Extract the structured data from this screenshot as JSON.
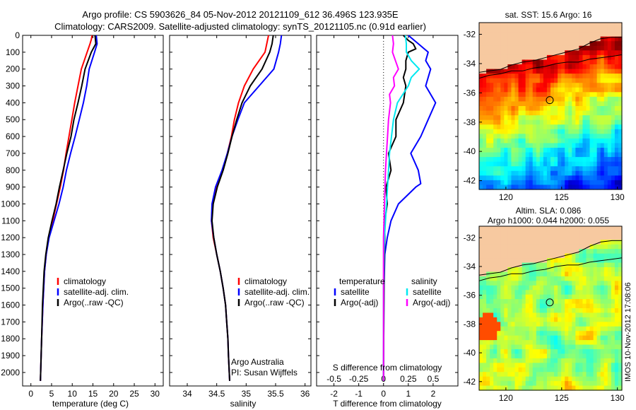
{
  "header": {
    "line1": "Argo profile: CS 5903626_84 05-Nov-2012 20121109_612 36.496S 123.935E",
    "line2": "Climatology: CARS2009. Satellite-adjusted climatology: synTS_20121105.nc (0.91d earlier)"
  },
  "colors": {
    "climatology": "#ff0000",
    "satellite": "#0000ff",
    "argo": "#000000",
    "s_satellite": "#00e8f0",
    "s_argo": "#ff00ff",
    "land": "#f7c9a0"
  },
  "chart_data": [
    {
      "type": "line",
      "name": "temperature",
      "xlabel": "temperature (deg C)",
      "ylabel": "",
      "xlim": [
        -2,
        32
      ],
      "ylim": [
        0,
        2080
      ],
      "y_inverted": true,
      "xticks": [
        "0",
        "5",
        "10",
        "15",
        "20",
        "25",
        "30"
      ],
      "yticks": [
        "0",
        "100",
        "200",
        "300",
        "400",
        "500",
        "600",
        "700",
        "800",
        "900",
        "1000",
        "1100",
        "1200",
        "1300",
        "1400",
        "1500",
        "1600",
        "1700",
        "1800",
        "1900",
        "2000"
      ],
      "legend": [
        "climatology",
        "satellite-adj. clim.",
        "Argo(..raw -QC)"
      ],
      "legend_placement": "lower-center",
      "series": [
        {
          "name": "climatology",
          "color": "red",
          "depth": [
            0,
            25,
            50,
            100,
            200,
            300,
            400,
            500,
            600,
            700,
            800,
            900,
            1000,
            1100,
            1200,
            1300,
            1400,
            1600,
            1800,
            2050
          ],
          "values": [
            14.8,
            14.6,
            14.3,
            13.6,
            12.2,
            11.4,
            10.6,
            9.9,
            9.2,
            8.5,
            7.9,
            7.1,
            6.2,
            5.3,
            4.3,
            3.7,
            3.3,
            2.9,
            2.6,
            2.3
          ]
        },
        {
          "name": "satellite-adj. clim.",
          "color": "blue",
          "depth": [
            0,
            25,
            50,
            100,
            200,
            300,
            400,
            500,
            600,
            700,
            800,
            900,
            1000,
            1100,
            1200,
            1300,
            1400,
            1600,
            1800,
            2050
          ],
          "values": [
            15.8,
            15.9,
            16.0,
            15.4,
            14.1,
            13.5,
            12.7,
            11.7,
            10.7,
            9.6,
            8.6,
            7.8,
            6.8,
            5.6,
            4.4,
            3.7,
            3.3,
            2.9,
            2.6,
            2.3
          ]
        },
        {
          "name": "Argo(..raw -QC)",
          "color": "black",
          "depth": [
            0,
            25,
            50,
            100,
            200,
            300,
            400,
            500,
            600,
            700,
            800,
            900,
            1000,
            1100,
            1200,
            1300,
            1400,
            1600,
            1800,
            2050
          ],
          "values": [
            15.5,
            15.6,
            15.7,
            14.6,
            13.1,
            12.3,
            11.4,
            10.4,
            9.7,
            8.7,
            7.8,
            6.9,
            6.1,
            5.1,
            4.2,
            3.6,
            3.2,
            2.8,
            2.6,
            2.3
          ]
        }
      ]
    },
    {
      "type": "line",
      "name": "salinity",
      "xlabel": "salinity",
      "ylabel": "",
      "xlim": [
        33.7,
        36.1
      ],
      "ylim": [
        0,
        2080
      ],
      "y_inverted": true,
      "xticks": [
        "34",
        "34.5",
        "35",
        "35.5",
        "36"
      ],
      "legend": [
        "climatology",
        "satellite-adj. clim.",
        "Argo(..raw -QC)"
      ],
      "legend_placement": "lower-right",
      "annotation": [
        "Argo Australia",
        "PI: Susan Wijffels"
      ],
      "series": [
        {
          "name": "climatology",
          "color": "red",
          "depth": [
            0,
            50,
            100,
            200,
            300,
            400,
            500,
            600,
            700,
            800,
            900,
            1000,
            1100,
            1200,
            1300,
            1400,
            1500,
            1600,
            1700,
            1800,
            1900,
            2050
          ],
          "values": [
            35.38,
            35.35,
            35.32,
            35.12,
            34.97,
            34.87,
            34.8,
            34.75,
            34.68,
            34.6,
            34.5,
            34.43,
            34.41,
            34.44,
            34.5,
            34.56,
            34.61,
            34.65,
            34.67,
            34.69,
            34.7,
            34.72
          ]
        },
        {
          "name": "satellite-adj. clim.",
          "color": "blue",
          "depth": [
            0,
            50,
            100,
            200,
            300,
            400,
            500,
            600,
            700,
            800,
            900,
            1000,
            1100,
            1200,
            1300,
            1400,
            1500,
            1600,
            1700,
            1800,
            1900,
            2050
          ],
          "values": [
            35.6,
            35.58,
            35.55,
            35.47,
            35.22,
            34.97,
            34.86,
            34.76,
            34.68,
            34.59,
            34.48,
            34.42,
            34.41,
            34.45,
            34.5,
            34.56,
            34.61,
            34.65,
            34.67,
            34.69,
            34.7,
            34.72
          ]
        },
        {
          "name": "Argo(..raw -QC)",
          "color": "black",
          "depth": [
            0,
            50,
            100,
            200,
            300,
            400,
            500,
            600,
            700,
            800,
            900,
            1000,
            1100,
            1200,
            1300,
            1400,
            1500,
            1600,
            1700,
            1800,
            1900,
            2050
          ],
          "values": [
            35.46,
            35.44,
            35.4,
            35.27,
            35.07,
            34.93,
            34.84,
            34.76,
            34.69,
            34.61,
            34.51,
            34.44,
            34.42,
            34.45,
            34.5,
            34.56,
            34.61,
            34.65,
            34.67,
            34.69,
            34.7,
            34.72
          ]
        }
      ]
    },
    {
      "type": "line",
      "name": "differences",
      "xlabel": "T difference from climatology",
      "xlabel2": "S difference from climatology",
      "xlim": [
        -2.7,
        3.0
      ],
      "xlim_S": [
        -0.675,
        0.75
      ],
      "ylim": [
        0,
        2080
      ],
      "y_inverted": true,
      "xticks": [
        "-2",
        "-1",
        "0",
        "1",
        "2"
      ],
      "xticks_S": [
        "-0.5",
        "-0.25",
        "0",
        "0.25",
        "0.5"
      ],
      "legend_T_title": "temperature",
      "legend_S_title": "salinity",
      "legend_T": [
        "satellite",
        "Argo(-adj)"
      ],
      "legend_S": [
        "satellite",
        "Argo(-adj)"
      ],
      "zero_line": "dotted",
      "series": [
        {
          "name": "T satellite",
          "color": "blue",
          "depth": [
            0,
            50,
            100,
            150,
            200,
            300,
            400,
            500,
            600,
            700,
            800,
            880,
            900,
            1000,
            1100,
            1200,
            1300,
            1500,
            1700,
            2050
          ],
          "values": [
            1.0,
            1.4,
            1.8,
            1.7,
            1.9,
            1.7,
            2.1,
            1.8,
            1.5,
            1.1,
            1.4,
            1.5,
            1.3,
            0.6,
            0.3,
            0.15,
            0.05,
            0.02,
            0.01,
            0
          ]
        },
        {
          "name": "T Argo(-adj)",
          "color": "black",
          "depth": [
            0,
            30,
            50,
            80,
            100,
            150,
            200,
            250,
            300,
            400,
            500,
            600,
            700,
            800,
            900,
            1000,
            1100,
            1200,
            1400,
            1700,
            2050
          ],
          "values": [
            0.8,
            1.0,
            1.2,
            1.3,
            1.0,
            0.9,
            0.9,
            0.8,
            0.9,
            0.8,
            0.5,
            0.5,
            0.2,
            0.3,
            0.1,
            0.15,
            0.05,
            0.05,
            0.02,
            0.01,
            0
          ]
        },
        {
          "name": "S satellite",
          "color": "cyan",
          "depth": [
            0,
            50,
            100,
            150,
            200,
            250,
            300,
            400,
            500,
            600,
            700,
            800,
            900,
            1000,
            1100,
            1200,
            1300,
            1500,
            1700,
            2050
          ],
          "values": [
            0.22,
            0.23,
            0.23,
            0.28,
            0.36,
            0.28,
            0.25,
            0.14,
            0.1,
            0.08,
            0.06,
            0.05,
            0.04,
            0.03,
            0.02,
            0.01,
            0.005,
            0,
            0,
            0
          ]
        },
        {
          "name": "S Argo(-adj)",
          "color": "magenta",
          "depth": [
            0,
            50,
            100,
            150,
            200,
            250,
            300,
            350,
            400,
            500,
            600,
            700,
            800,
            900,
            1000,
            1100,
            1200,
            1300,
            1400,
            1500,
            2050
          ],
          "values": [
            0.09,
            0.1,
            0.09,
            0.12,
            0.15,
            0.1,
            0.11,
            0.06,
            0.07,
            0.05,
            0.04,
            0.03,
            0.02,
            0.015,
            0.01,
            0.005,
            0,
            0,
            0,
            0,
            0
          ]
        }
      ]
    },
    {
      "type": "heatmap",
      "name": "sst_map",
      "title": "sat. SST: 15.6 Argo: 16",
      "xlim": [
        117.6,
        130.4
      ],
      "ylim": [
        -42.6,
        -31.2
      ],
      "xticks": [
        "120",
        "125",
        "130"
      ],
      "yticks": [
        "-32",
        "-34",
        "-36",
        "-38",
        "-40",
        "-42"
      ],
      "marker": {
        "lon": 123.935,
        "lat": -36.496
      },
      "coast_lat": [
        -34.6,
        -34.5,
        -34.4,
        -34.1,
        -33.9,
        -33.8,
        -33.6,
        -33.4,
        -33.2,
        -33.0,
        -32.6,
        -32.3,
        -32.2,
        -32.2
      ],
      "coast_lon": [
        117.6,
        118.5,
        119.5,
        120.5,
        121.5,
        122.5,
        123.5,
        124.5,
        125.5,
        126.5,
        127.5,
        128.5,
        129.5,
        130.4
      ],
      "contour_lat": [
        -35.0,
        -34.8,
        -34.7,
        -34.5,
        -34.5,
        -34.3,
        -34.2,
        -34.0,
        -33.9,
        -33.9,
        -33.7,
        -33.6,
        -33.5,
        -33.4
      ],
      "contour_lon": [
        117.6,
        118.5,
        119.5,
        120.5,
        121.5,
        122.5,
        123.5,
        124.5,
        125.5,
        126.5,
        127.5,
        128.5,
        129.5,
        130.4
      ],
      "colorscale": "jet"
    },
    {
      "type": "heatmap",
      "name": "sla_map",
      "title1": "Altim. SLA: 0.086",
      "title2": "Argo h1000: 0.044 h2000: 0.055",
      "xlim": [
        117.6,
        130.4
      ],
      "ylim": [
        -42.6,
        -31.2
      ],
      "xticks": [
        "120",
        "125",
        "130"
      ],
      "yticks": [
        "-32",
        "-34",
        "-36",
        "-38",
        "-40",
        "-42"
      ],
      "marker": {
        "lon": 123.935,
        "lat": -36.496
      },
      "colorscale": "jet"
    }
  ],
  "footer": {
    "watermark": "IMOS 10-Nov-2012 17:08:06"
  }
}
